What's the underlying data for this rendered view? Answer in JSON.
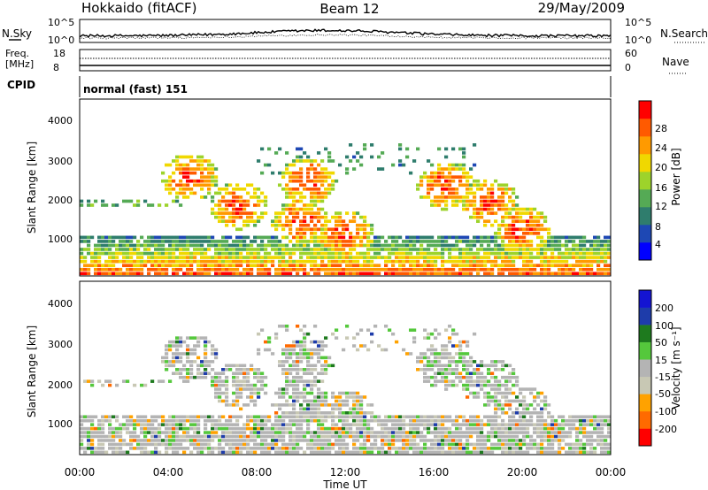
{
  "header": {
    "station": "Hokkaido (fitACF)",
    "beam": "Beam 12",
    "date": "29/May/2009"
  },
  "noise_panel": {
    "left_label": "N.Sky",
    "right_label": "N.Search",
    "ticks_left": [
      "10^5",
      "10^0"
    ],
    "ticks_right": [
      "10^5",
      "10^0"
    ]
  },
  "freq_panel": {
    "left_label_1": "Freq.",
    "left_label_2": "[MHz]",
    "right_label": "Nave",
    "ticks_left": [
      "18",
      "8"
    ],
    "ticks_right": [
      "60",
      "0"
    ]
  },
  "cpid": {
    "label": "CPID",
    "value": "normal (fast) 151"
  },
  "colors": {
    "power": [
      "#0000ff",
      "#1e48b4",
      "#2f7d6d",
      "#55aa55",
      "#9dd32b",
      "#f0d800",
      "#ff9a00",
      "#ff5a00",
      "#ff0000"
    ],
    "velocity": [
      "#ff0000",
      "#ff6a00",
      "#ffa200",
      "#c8c8b4",
      "#b4b4b4",
      "#55c83c",
      "#1e7a1e",
      "#1e3caa",
      "#1414d2"
    ]
  },
  "chart_data": [
    {
      "type": "heatmap",
      "name": "power",
      "ylabel": "Slant Range [km]",
      "yticks": [
        "1000",
        "2000",
        "3000",
        "4000"
      ],
      "ylim": [
        180,
        4530
      ],
      "colorbar_label": "Power [dB]",
      "colorbar_ticks": [
        "4",
        "8",
        "12",
        "16",
        "20",
        "24",
        "28"
      ],
      "colorbar_range": [
        0,
        30
      ]
    },
    {
      "type": "heatmap",
      "name": "velocity",
      "ylabel": "Slant Range [km]",
      "yticks": [
        "1000",
        "2000",
        "3000",
        "4000"
      ],
      "ylim": [
        180,
        4530
      ],
      "colorbar_label": "Velocity [m s⁻¹]",
      "colorbar_ticks": [
        "-200",
        "-100",
        "-50",
        "-15",
        "15",
        "50",
        "100",
        "200"
      ],
      "xlabel": "Time UT",
      "xticks": [
        "00:00",
        "04:00",
        "08:00",
        "12:00",
        "16:00",
        "20:00",
        "00:00"
      ],
      "xlim_hours": [
        0,
        24
      ]
    }
  ]
}
